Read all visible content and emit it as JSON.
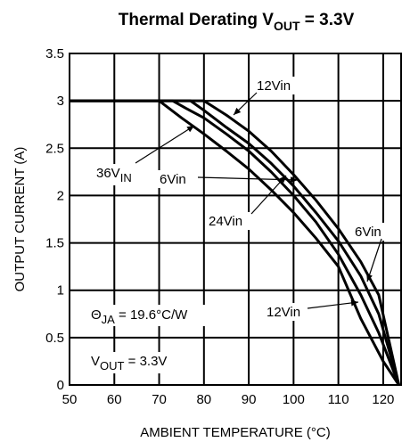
{
  "chart_data": {
    "type": "line",
    "title": {
      "main": "Thermal Derating V",
      "sub": "OUT",
      "tail": " = 3.3V"
    },
    "xlabel": "AMBIENT TEMPERATURE (°C)",
    "ylabel": "OUTPUT CURRENT (A)",
    "xlim": [
      50,
      124
    ],
    "ylim": [
      0,
      3.5
    ],
    "xticks": [
      50,
      60,
      70,
      80,
      90,
      100,
      110,
      120
    ],
    "yticks": [
      0,
      0.5,
      1,
      1.5,
      2,
      2.5,
      3,
      3.5
    ],
    "ytick_labels": [
      "0",
      "0.5",
      "1",
      "1.5",
      "2",
      "2.5",
      "3",
      "3.5"
    ],
    "grid": true,
    "series": [
      {
        "key": "vin36",
        "points": [
          [
            50,
            3
          ],
          [
            70,
            3
          ],
          [
            75,
            2.82
          ],
          [
            80,
            2.65
          ],
          [
            85,
            2.47
          ],
          [
            90,
            2.28
          ],
          [
            95,
            2.06
          ],
          [
            100,
            1.82
          ],
          [
            105,
            1.55
          ],
          [
            110,
            1.25
          ],
          [
            115,
            0.7
          ],
          [
            120,
            0.25
          ],
          [
            123.5,
            0.0
          ]
        ]
      },
      {
        "key": "vin6a",
        "points": [
          [
            50,
            3
          ],
          [
            73,
            3
          ],
          [
            76,
            2.92
          ],
          [
            80,
            2.82
          ],
          [
            85,
            2.65
          ],
          [
            90,
            2.47
          ],
          [
            95,
            2.25
          ],
          [
            100,
            2.0
          ],
          [
            105,
            1.72
          ],
          [
            110,
            1.38
          ],
          [
            115,
            0.95
          ],
          [
            119,
            0.55
          ],
          [
            123.5,
            0.0
          ]
        ]
      },
      {
        "key": "vin24",
        "points": [
          [
            50,
            3
          ],
          [
            77,
            3
          ],
          [
            80,
            2.9
          ],
          [
            85,
            2.72
          ],
          [
            90,
            2.55
          ],
          [
            95,
            2.34
          ],
          [
            100,
            2.1
          ],
          [
            105,
            1.82
          ],
          [
            110,
            1.52
          ],
          [
            115,
            1.15
          ],
          [
            119,
            0.75
          ],
          [
            123.5,
            0.0
          ]
        ]
      },
      {
        "key": "vin12",
        "points": [
          [
            50,
            3
          ],
          [
            80,
            3
          ],
          [
            85,
            2.85
          ],
          [
            90,
            2.68
          ],
          [
            95,
            2.47
          ],
          [
            100,
            2.22
          ],
          [
            105,
            1.95
          ],
          [
            110,
            1.65
          ],
          [
            115,
            1.3
          ],
          [
            119,
            0.95
          ],
          [
            123.5,
            0.0
          ]
        ]
      }
    ],
    "labels": {
      "vin12_top": "12Vin",
      "vin36_main": "36V",
      "vin36_sub": "IN",
      "vin6_left": "6Vin",
      "vin24": "24Vin",
      "vin6_right": "6Vin",
      "vin12_bottom": "12Vin"
    },
    "notes": {
      "theta_main": "Θ",
      "theta_sub": "JA",
      "theta_val": " = 19.6°C/W",
      "vout_main": "V",
      "vout_sub": "OUT",
      "vout_val": " = 3.3V"
    },
    "colors": {
      "line": "#000000",
      "grid": "#000000",
      "background": "#ffffff"
    }
  }
}
